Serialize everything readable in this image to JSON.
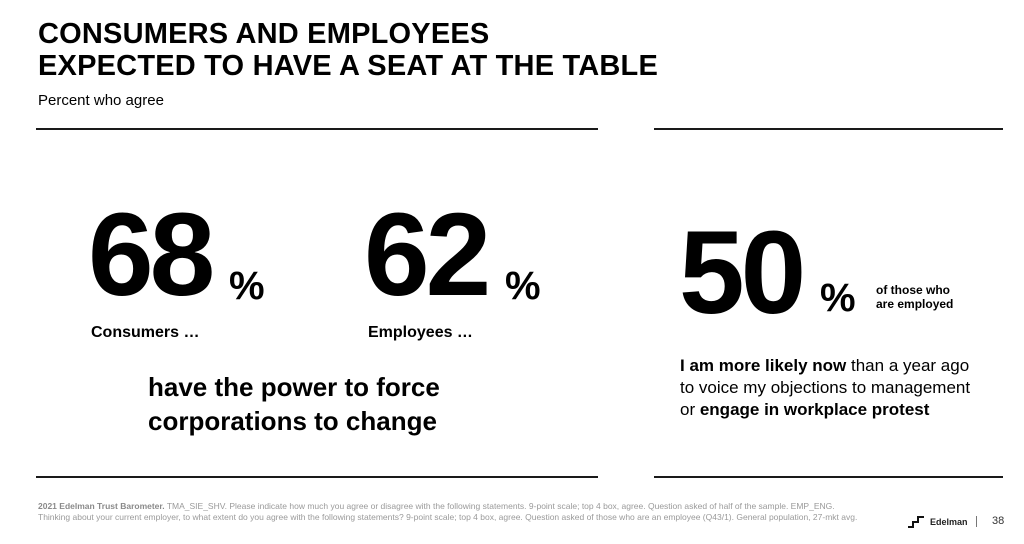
{
  "slide": {
    "title_line1": "CONSUMERS AND EMPLOYEES",
    "title_line2": "EXPECTED TO HAVE A SEAT AT THE TABLE",
    "subtitle": "Percent who agree"
  },
  "stats": {
    "consumers": {
      "value": "68",
      "unit": "%",
      "label": "Consumers …"
    },
    "employees": {
      "value": "62",
      "unit": "%",
      "label": "Employees …"
    },
    "shared_line1": "have the power to force",
    "shared_line2": "corporations to change",
    "employed": {
      "value": "50",
      "unit": "%",
      "note_line1": "of those who",
      "note_line2": "are employed",
      "stmt_bold1": "I am more likely now",
      "stmt_text1": " than a year ago to voice my objections to management or ",
      "stmt_bold2": "engage in workplace protest"
    }
  },
  "footer": {
    "source_bold": "2021 Edelman Trust Barometer.",
    "source_text": " TMA_SIE_SHV. Please indicate how much you agree or disagree with the following statements. 9-point scale; top 4 box, agree. Question asked of half of the sample. EMP_ENG. Thinking about your current employer, to what extent do you agree with the following statements? 9-point scale; top 4 box, agree. Question asked of those who are an employee (Q43/1). General population, 27-mkt avg.",
    "logo_text": "Edelman",
    "page_number": "38"
  }
}
